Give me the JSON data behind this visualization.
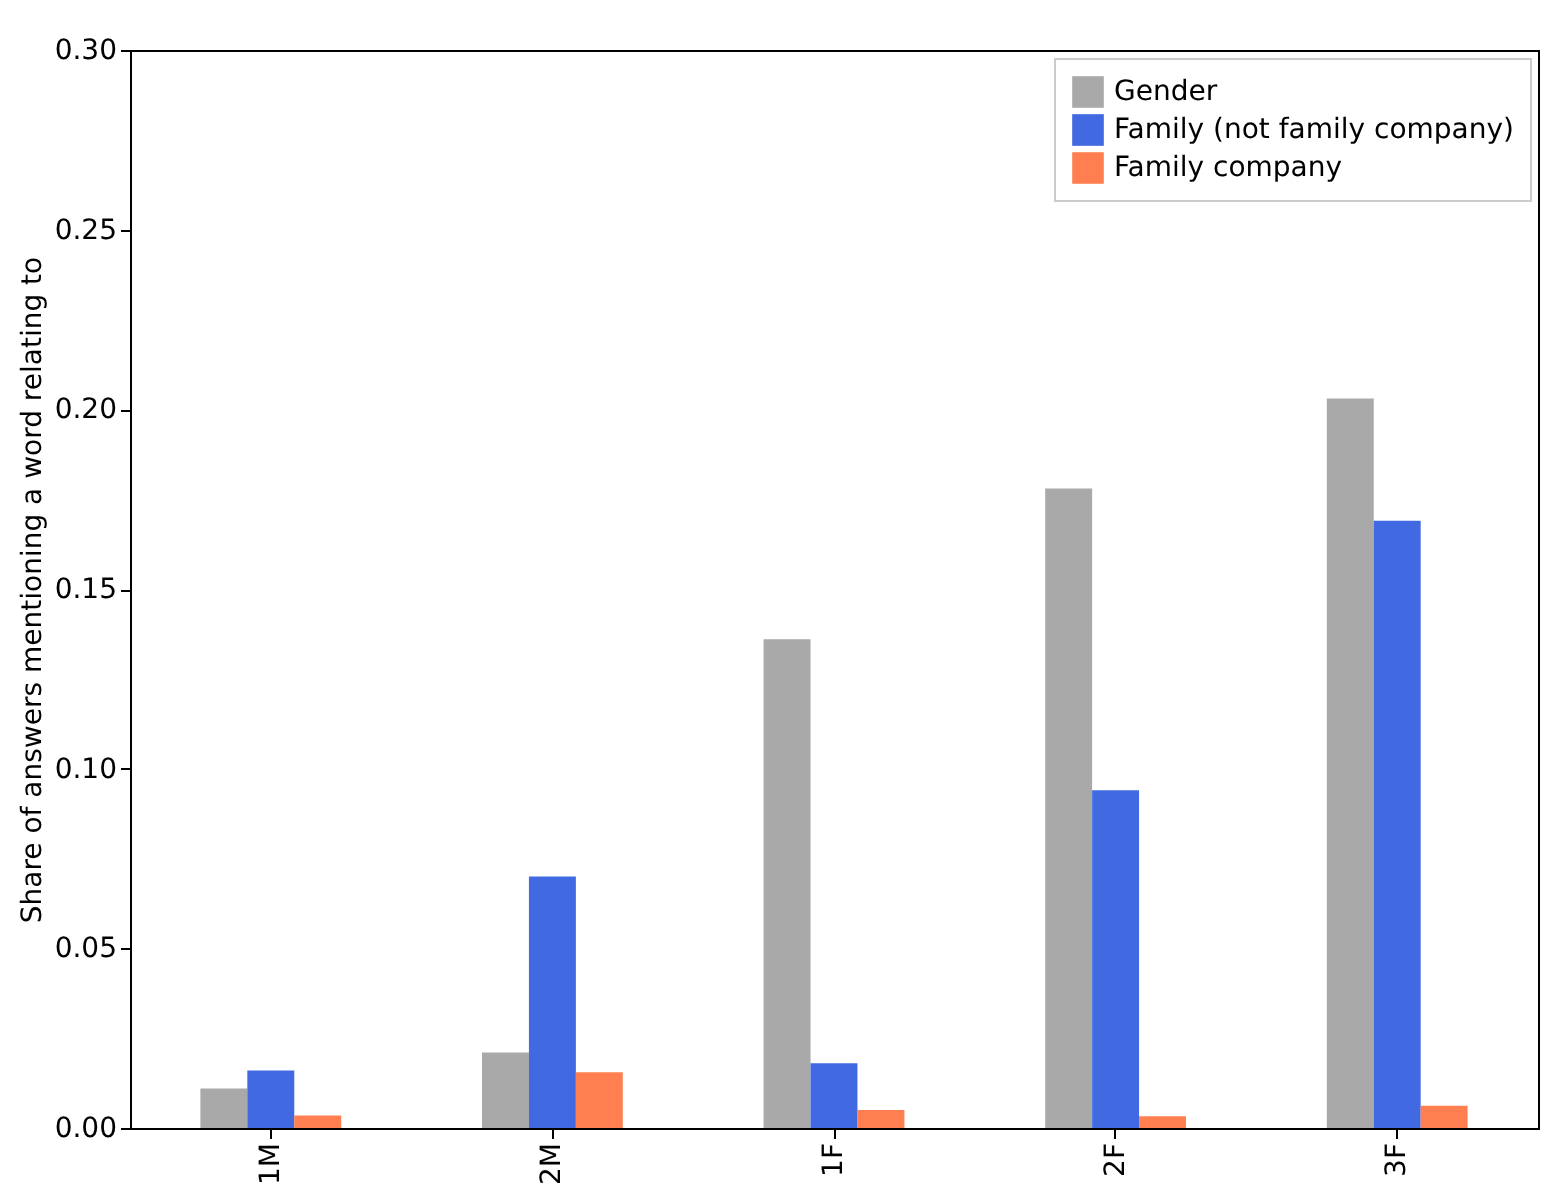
{
  "chart_data": {
    "type": "bar",
    "ylabel": "Share of answers mentioning a word relating to",
    "categories": [
      "1M",
      "2M",
      "1F",
      "2F",
      "3F"
    ],
    "series": [
      {
        "name": "Gender",
        "color": "#a9a9a9",
        "values": [
          0.011,
          0.021,
          0.136,
          0.178,
          0.203
        ]
      },
      {
        "name": "Family (not family company)",
        "color": "#4169e1",
        "values": [
          0.016,
          0.07,
          0.018,
          0.094,
          0.169
        ]
      },
      {
        "name": "Family company",
        "color": "#ff7f50",
        "values": [
          0.0035,
          0.0155,
          0.005,
          0.0033,
          0.0062
        ]
      }
    ],
    "ylim": [
      0,
      0.3
    ],
    "yticks": [
      {
        "value": 0,
        "label": "0.00"
      },
      0.05,
      {
        "value": 0.1,
        "label": "0.10"
      },
      0.15,
      {
        "value": 0.2,
        "label": "0.20"
      },
      0.25,
      {
        "value": 0.3,
        "label": "0.30"
      }
    ],
    "legend": "top right"
  }
}
